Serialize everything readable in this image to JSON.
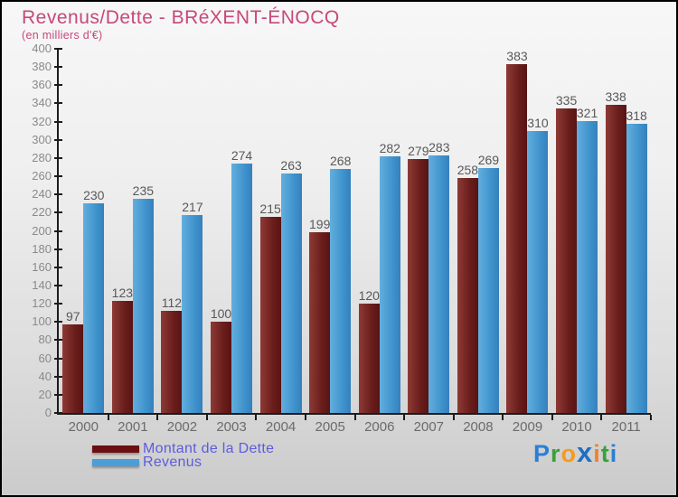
{
  "header": {
    "title": "Revenus/Dette - BRéXENT-ÉNOCQ",
    "subtitle": "(en milliers d'€)"
  },
  "chart_data": {
    "type": "bar",
    "title": "Revenus/Dette - BRéXENT-ÉNOCQ",
    "subtitle": "(en milliers d'€)",
    "categories": [
      "2000",
      "2001",
      "2002",
      "2003",
      "2004",
      "2005",
      "2006",
      "2007",
      "2008",
      "2009",
      "2010",
      "2011"
    ],
    "series": [
      {
        "name": "Montant de la Dette",
        "color": "#6b1e1c",
        "values": [
          97,
          123,
          112,
          100,
          215,
          199,
          120,
          279,
          258,
          383,
          335,
          338
        ]
      },
      {
        "name": "Revenus",
        "color": "#4a9fd8",
        "values": [
          230,
          235,
          217,
          274,
          263,
          268,
          282,
          283,
          269,
          310,
          321,
          318
        ]
      }
    ],
    "xlabel": "",
    "ylabel": "",
    "ylim": [
      0,
      400
    ],
    "ytick_step": 20,
    "grid": false,
    "legend_position": "bottom-left",
    "value_labels": true
  },
  "legend": {
    "items": [
      {
        "label": "Montant de la Dette",
        "color": "#6b0f10"
      },
      {
        "label": "Revenus",
        "color": "#4a9fd8"
      }
    ]
  },
  "logo": {
    "text": "Proxiti",
    "letters": [
      {
        "ch": "P",
        "color": "#2a7fd4",
        "big": false
      },
      {
        "ch": "r",
        "color": "#3aa13a",
        "big": false
      },
      {
        "ch": "o",
        "color": "#f49b20",
        "big": false
      },
      {
        "ch": "x",
        "color": "#1f6fc0",
        "big": true
      },
      {
        "ch": "i",
        "color": "#f0822a",
        "big": false
      },
      {
        "ch": "t",
        "color": "#3aa13a",
        "big": false
      },
      {
        "ch": "i",
        "color": "#2a7fd4",
        "big": false
      }
    ]
  },
  "colors": {
    "title": "#c6487a",
    "axis": "#1c1c1c",
    "ytick_label": "#8a8a8a",
    "year_label": "#6b6b6b",
    "value_label": "#585858",
    "legend_text": "#5c5ce0",
    "bar_dette": "#6b1e1c",
    "bar_revenus": "#4a9fd8"
  }
}
